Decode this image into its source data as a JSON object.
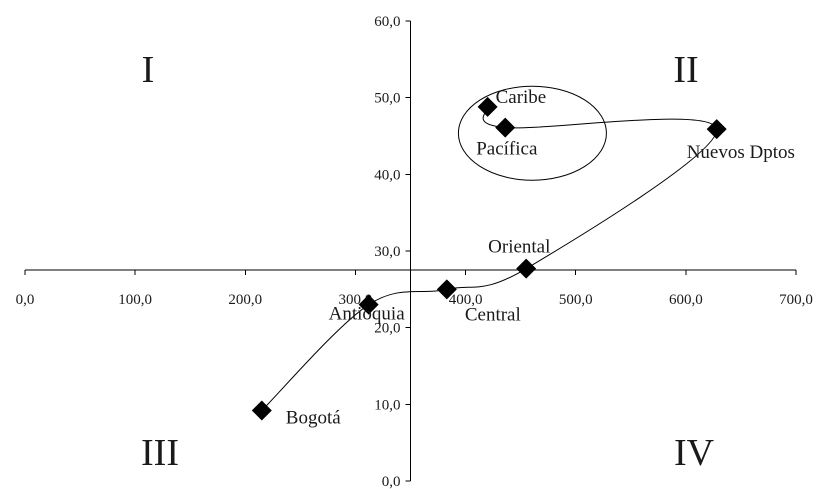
{
  "chart_data": {
    "type": "scatter",
    "x_ticks": [
      "0,0",
      "100,0",
      "200,0",
      "300,0",
      "400,0",
      "500,0",
      "600,0",
      "700,0"
    ],
    "y_ticks": [
      "0,0",
      "10,0",
      "20,0",
      "30,0",
      "40,0",
      "50,0",
      "60,0"
    ],
    "xlim": [
      0,
      700
    ],
    "ylim": [
      0,
      60
    ],
    "axes_cross": {
      "x": 350,
      "y": 27.5
    },
    "grid": false,
    "points": [
      {
        "label": "Bogotá",
        "x": 215,
        "y": 9.2
      },
      {
        "label": "Antioquia",
        "x": 312,
        "y": 23.0
      },
      {
        "label": "Central",
        "x": 383,
        "y": 25.0
      },
      {
        "label": "Oriental",
        "x": 455,
        "y": 27.7
      },
      {
        "label": "Nuevos Dptos",
        "x": 628,
        "y": 45.9
      },
      {
        "label": "Pacífica",
        "x": 436,
        "y": 46.1
      },
      {
        "label": "Caribe",
        "x": 420,
        "y": 48.8
      }
    ],
    "connected_order": [
      "Bogotá",
      "Antioquia",
      "Central",
      "Oriental",
      "Nuevos Dptos",
      "Pacífica",
      "Caribe"
    ],
    "quadrants": [
      "I",
      "II",
      "III",
      "IV"
    ],
    "highlight_group": [
      "Caribe",
      "Pacífica"
    ]
  }
}
